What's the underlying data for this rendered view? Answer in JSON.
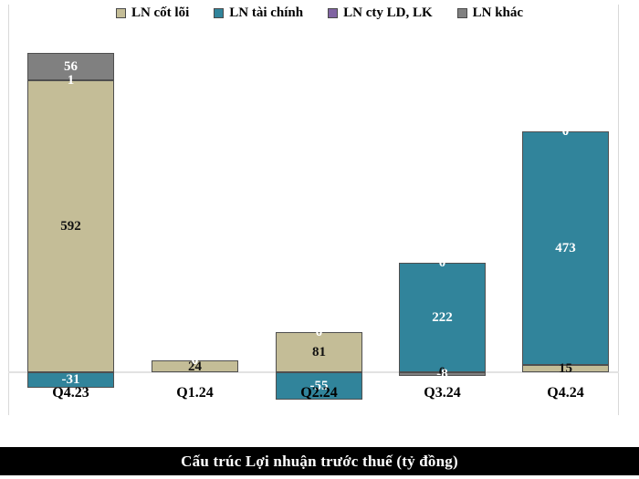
{
  "title": "Cấu trúc Lợi nhuận trước thuế (tỷ đồng)",
  "legend": {
    "position": "top",
    "items": [
      {
        "label": "LN cốt lõi",
        "color": "#C4BD97"
      },
      {
        "label": "LN tài chính",
        "color": "#31849B"
      },
      {
        "label": "LN cty LD, LK",
        "color": "#8064A2"
      },
      {
        "label": "LN khác",
        "color": "#808080"
      }
    ]
  },
  "chart_data": {
    "type": "bar",
    "stacked": true,
    "title": "Cấu trúc Lợi nhuận trước thuế (tỷ đồng)",
    "unit": "tỷ đồng",
    "categories": [
      "Q4.23",
      "Q1.24",
      "Q2.24",
      "Q3.24",
      "Q4.24"
    ],
    "series": [
      {
        "name": "LN cốt lõi",
        "color": "#C4BD97",
        "label_color": "#111111",
        "values": [
          592,
          24,
          81,
          0,
          15
        ]
      },
      {
        "name": "LN tài chính",
        "color": "#31849B",
        "label_color": "#FFFFFF",
        "values": [
          -31,
          0,
          -55,
          222,
          473
        ]
      },
      {
        "name": "LN cty LD, LK",
        "color": "#8064A2",
        "label_color": "#FFFFFF",
        "values": [
          1,
          0,
          0,
          0,
          0
        ]
      },
      {
        "name": "LN khác",
        "color": "#808080",
        "label_color": "#FFFFFF",
        "values": [
          56,
          0,
          0,
          -8,
          0
        ]
      }
    ],
    "data_labels": true,
    "grid": false,
    "ylim": [
      -120,
      680
    ],
    "axis_color": "#D9D9D9",
    "background": "#FFFFFF"
  }
}
